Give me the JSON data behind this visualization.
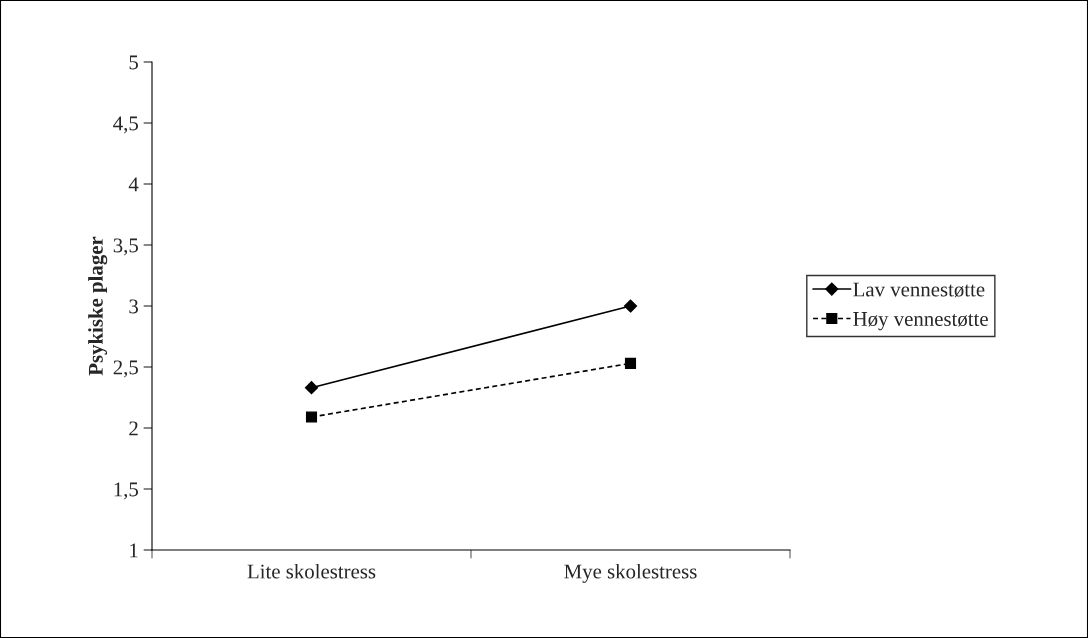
{
  "chart_data": {
    "type": "line",
    "ylabel": "Psykiske plager",
    "categories": [
      "Lite skolestress",
      "Mye skolestress"
    ],
    "series": [
      {
        "name": "Lav vennestøtte",
        "color": "#000000",
        "values": [
          2.33,
          3.0
        ],
        "marker": "diamond",
        "line_style": "solid"
      },
      {
        "name": "Høy vennestøtte",
        "color": "#000000",
        "values": [
          2.09,
          2.53
        ],
        "marker": "square",
        "line_style": "dashed"
      }
    ],
    "ylim": [
      1,
      5
    ],
    "yticks": [
      1,
      {
        "value": 1.5,
        "label": "1,5"
      },
      2,
      {
        "value": 2.5,
        "label": "2,5"
      },
      3,
      {
        "value": 3.5,
        "label": "3,5"
      },
      4,
      {
        "value": 4.5,
        "label": "4,5"
      },
      5
    ],
    "grid": false,
    "legend": "right"
  }
}
